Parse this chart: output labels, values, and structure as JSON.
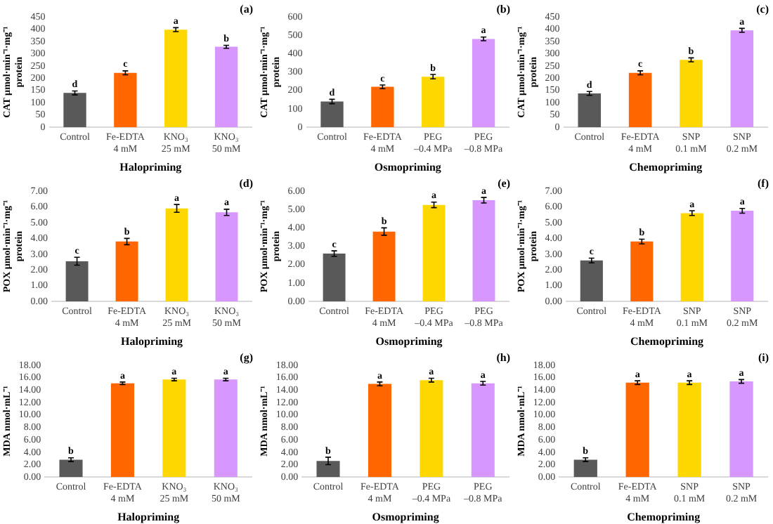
{
  "chart_data": [
    {
      "type": "bar",
      "xlabel": "Halopriming",
      "ylabel": "CAT µmol·min⁻¹·mg⁻¹\nprotein",
      "categories": [
        "Control",
        "Fe-EDTA\n4 mM",
        "KNO₃\n25 mM",
        "KNO₃\n50 mM"
      ],
      "values": [
        140,
        222,
        398,
        328
      ],
      "errors": [
        8,
        8,
        8,
        6
      ],
      "colors": [
        "#595959",
        "#ff6600",
        "#ffd700",
        "#d896ff"
      ],
      "ylim": [
        0,
        450
      ],
      "yticks": [
        0,
        50,
        100,
        150,
        200,
        250,
        300,
        350,
        400,
        450
      ],
      "grid": false,
      "annotations": [
        "(a)",
        {
          "text": "d",
          "x": "Control",
          "y": 148
        },
        {
          "text": "c",
          "x": "Fe-EDTA\n4 mM",
          "y": 230
        },
        {
          "text": "a",
          "x": "KNO₃\n25 mM",
          "y": 406
        },
        {
          "text": "b",
          "x": "KNO₃\n50 mM",
          "y": 334
        }
      ]
    },
    {
      "type": "bar",
      "xlabel": "Osmopriming",
      "ylabel": "CAT µmol·min⁻¹·mg⁻¹\nprotein",
      "categories": [
        "Control",
        "Fe-EDTA\n4 mM",
        "PEG\n–0.4 MPa",
        "PEG\n–0.8 MPa"
      ],
      "values": [
        140,
        220,
        275,
        480
      ],
      "errors": [
        12,
        10,
        12,
        10
      ],
      "colors": [
        "#595959",
        "#ff6600",
        "#ffd700",
        "#d896ff"
      ],
      "ylim": [
        0,
        600
      ],
      "yticks": [
        0,
        100,
        200,
        300,
        400,
        500,
        600
      ],
      "grid": false,
      "annotations": [
        "(b)",
        {
          "text": "d",
          "x": "Control",
          "y": 152
        },
        {
          "text": "c",
          "x": "Fe-EDTA\n4 mM",
          "y": 230
        },
        {
          "text": "b",
          "x": "PEG\n–0.4 MPa",
          "y": 287
        },
        {
          "text": "a",
          "x": "PEG\n–0.8 MPa",
          "y": 490
        }
      ]
    },
    {
      "type": "bar",
      "xlabel": "Chemopriming",
      "ylabel": "CAT µmol·min⁻¹·mg⁻¹\nprotein",
      "categories": [
        "Control",
        "Fe-EDTA\n4 mM",
        "SNP\n0.1 mM",
        "SNP\n0.2 mM"
      ],
      "values": [
        138,
        222,
        275,
        395
      ],
      "errors": [
        8,
        8,
        8,
        8
      ],
      "colors": [
        "#595959",
        "#ff6600",
        "#ffd700",
        "#d896ff"
      ],
      "ylim": [
        0,
        450
      ],
      "yticks": [
        0,
        50,
        100,
        150,
        200,
        250,
        300,
        350,
        400,
        450
      ],
      "grid": false,
      "annotations": [
        "(c)",
        {
          "text": "d",
          "x": "Control",
          "y": 146
        },
        {
          "text": "c",
          "x": "Fe-EDTA\n4 mM",
          "y": 230
        },
        {
          "text": "b",
          "x": "SNP\n0.1 mM",
          "y": 283
        },
        {
          "text": "a",
          "x": "SNP\n0.2 mM",
          "y": 403
        }
      ]
    },
    {
      "type": "bar",
      "xlabel": "Halopriming",
      "ylabel": "POX µmol·min⁻¹·mg⁻¹\nprotein",
      "categories": [
        "Control",
        "Fe-EDTA\n4 mM",
        "KNO₃\n25 mM",
        "KNO₃\n50 mM"
      ],
      "values": [
        2.55,
        3.8,
        5.9,
        5.65
      ],
      "errors": [
        0.25,
        0.2,
        0.25,
        0.2
      ],
      "colors": [
        "#595959",
        "#ff6600",
        "#ffd700",
        "#d896ff"
      ],
      "ylim": [
        0,
        7
      ],
      "yticks": [
        {
          "value": 0,
          "label": "0.00"
        },
        {
          "value": 1,
          "label": "1.00"
        },
        {
          "value": 2,
          "label": "2.00"
        },
        {
          "value": 3,
          "label": "3.00"
        },
        {
          "value": 4,
          "label": "4.00"
        },
        {
          "value": 5,
          "label": "5.00"
        },
        {
          "value": 6,
          "label": "6.00"
        },
        {
          "value": 7,
          "label": "7.00"
        }
      ],
      "grid": false,
      "annotations": [
        "(d)",
        {
          "text": "c",
          "x": "Control",
          "y": 2.8
        },
        {
          "text": "b",
          "x": "Fe-EDTA\n4 mM",
          "y": 4
        },
        {
          "text": "a",
          "x": "KNO₃\n25 mM",
          "y": 6.15
        },
        {
          "text": "a",
          "x": "KNO₃\n50 mM",
          "y": 5.85
        }
      ]
    },
    {
      "type": "bar",
      "xlabel": "Osmopriming",
      "ylabel": "POX µmol·min⁻¹·mg⁻¹\nprotein",
      "categories": [
        "Control",
        "Fe-EDTA\n4 mM",
        "PEG\n–0.4 MPa",
        "PEG\n–0.8 MPa"
      ],
      "values": [
        2.6,
        3.8,
        5.25,
        5.5
      ],
      "errors": [
        0.15,
        0.2,
        0.15,
        0.15
      ],
      "colors": [
        "#595959",
        "#ff6600",
        "#ffd700",
        "#d896ff"
      ],
      "ylim": [
        0,
        6
      ],
      "yticks": [
        {
          "value": 0,
          "label": "0.00"
        },
        {
          "value": 1,
          "label": "1.00"
        },
        {
          "value": 2,
          "label": "2.00"
        },
        {
          "value": 3,
          "label": "3.00"
        },
        {
          "value": 4,
          "label": "4.00"
        },
        {
          "value": 5,
          "label": "5.00"
        },
        {
          "value": 6,
          "label": "6.00"
        }
      ],
      "grid": false,
      "annotations": [
        "(e)",
        {
          "text": "c",
          "x": "Control",
          "y": 2.75
        },
        {
          "text": "b",
          "x": "Fe-EDTA\n4 mM",
          "y": 4
        },
        {
          "text": "a",
          "x": "PEG\n–0.4 MPa",
          "y": 5.4
        },
        {
          "text": "a",
          "x": "PEG\n–0.8 MPa",
          "y": 5.65
        }
      ]
    },
    {
      "type": "bar",
      "xlabel": "Chemopriming",
      "ylabel": "POX µmol·min⁻¹·mg⁻¹\nprotein",
      "categories": [
        "Control",
        "Fe-EDTA\n4 mM",
        "SNP\n0.1 mM",
        "SNP\n0.2 mM"
      ],
      "values": [
        2.6,
        3.8,
        5.6,
        5.75
      ],
      "errors": [
        0.15,
        0.15,
        0.15,
        0.15
      ],
      "colors": [
        "#595959",
        "#ff6600",
        "#ffd700",
        "#d896ff"
      ],
      "ylim": [
        0,
        7
      ],
      "yticks": [
        {
          "value": 0,
          "label": "0.00"
        },
        {
          "value": 1,
          "label": "1.00"
        },
        {
          "value": 2,
          "label": "2.00"
        },
        {
          "value": 3,
          "label": "3.00"
        },
        {
          "value": 4,
          "label": "4.00"
        },
        {
          "value": 5,
          "label": "5.00"
        },
        {
          "value": 6,
          "label": "6.00"
        },
        {
          "value": 7,
          "label": "7.00"
        }
      ],
      "grid": false,
      "annotations": [
        "(f)",
        {
          "text": "c",
          "x": "Control",
          "y": 2.75
        },
        {
          "text": "b",
          "x": "Fe-EDTA\n4 mM",
          "y": 3.95
        },
        {
          "text": "a",
          "x": "SNP\n0.1 mM",
          "y": 5.75
        },
        {
          "text": "a",
          "x": "SNP\n0.2 mM",
          "y": 5.9
        }
      ]
    },
    {
      "type": "bar",
      "xlabel": "Halopriming",
      "ylabel": "MDA nmol·mL⁻¹",
      "categories": [
        "Control",
        "Fe-EDTA\n4 mM",
        "KNO₃\n25 mM",
        "KNO₃\n50 mM"
      ],
      "values": [
        2.8,
        15.1,
        15.7,
        15.7
      ],
      "errors": [
        0.3,
        0.2,
        0.2,
        0.2
      ],
      "colors": [
        "#595959",
        "#ff6600",
        "#ffd700",
        "#d896ff"
      ],
      "ylim": [
        0,
        18
      ],
      "yticks": [
        {
          "value": 0,
          "label": "0.00"
        },
        {
          "value": 2,
          "label": "2.00"
        },
        {
          "value": 4,
          "label": "4.00"
        },
        {
          "value": 6,
          "label": "6.00"
        },
        {
          "value": 8,
          "label": "8.00"
        },
        {
          "value": 10,
          "label": "10.00"
        },
        {
          "value": 12,
          "label": "12.00"
        },
        {
          "value": 14,
          "label": "14.00"
        },
        {
          "value": 16,
          "label": "16.00"
        },
        {
          "value": 18,
          "label": "18.00"
        }
      ],
      "grid": false,
      "annotations": [
        "(g)",
        {
          "text": "b",
          "x": "Control",
          "y": 3.1
        },
        {
          "text": "a",
          "x": "Fe-EDTA\n4 mM",
          "y": 15.3
        },
        {
          "text": "a",
          "x": "KNO₃\n25 mM",
          "y": 15.9
        },
        {
          "text": "a",
          "x": "KNO₃\n50 mM",
          "y": 15.9
        }
      ]
    },
    {
      "type": "bar",
      "xlabel": "Osmopriming",
      "ylabel": "MDA nmol·mL⁻¹",
      "categories": [
        "Control",
        "Fe-EDTA\n4 mM",
        "PEG\n–0.4 MPa",
        "PEG\n–0.8 MPa"
      ],
      "values": [
        2.6,
        15.0,
        15.6,
        15.1
      ],
      "errors": [
        0.6,
        0.3,
        0.3,
        0.3
      ],
      "colors": [
        "#595959",
        "#ff6600",
        "#ffd700",
        "#d896ff"
      ],
      "ylim": [
        0,
        18
      ],
      "yticks": [
        {
          "value": 0,
          "label": "0.00"
        },
        {
          "value": 2,
          "label": "2.00"
        },
        {
          "value": 4,
          "label": "4.00"
        },
        {
          "value": 6,
          "label": "6.00"
        },
        {
          "value": 8,
          "label": "8.00"
        },
        {
          "value": 10,
          "label": "10.00"
        },
        {
          "value": 12,
          "label": "12.00"
        },
        {
          "value": 14,
          "label": "14.00"
        },
        {
          "value": 16,
          "label": "16.00"
        },
        {
          "value": 18,
          "label": "18.00"
        }
      ],
      "grid": false,
      "annotations": [
        "(h)",
        {
          "text": "b",
          "x": "Control",
          "y": 3.2
        },
        {
          "text": "a",
          "x": "Fe-EDTA\n4 mM",
          "y": 15.3
        },
        {
          "text": "a",
          "x": "PEG\n–0.4 MPa",
          "y": 15.9
        },
        {
          "text": "a",
          "x": "PEG\n–0.8 MPa",
          "y": 15.4
        }
      ]
    },
    {
      "type": "bar",
      "xlabel": "Chemopriming",
      "ylabel": "MDA nmol·mL⁻¹",
      "categories": [
        "Control",
        "Fe-EDTA\n4 mM",
        "SNP\n0.1 mM",
        "SNP\n0.2 mM"
      ],
      "values": [
        2.8,
        15.2,
        15.2,
        15.4
      ],
      "errors": [
        0.3,
        0.3,
        0.3,
        0.3
      ],
      "colors": [
        "#595959",
        "#ff6600",
        "#ffd700",
        "#d896ff"
      ],
      "ylim": [
        0,
        18
      ],
      "yticks": [
        {
          "value": 0,
          "label": "0.00"
        },
        {
          "value": 2,
          "label": "2.00"
        },
        {
          "value": 4,
          "label": "4.00"
        },
        {
          "value": 6,
          "label": "6.00"
        },
        {
          "value": 8,
          "label": "8.00"
        },
        {
          "value": 10,
          "label": "10.00"
        },
        {
          "value": 12,
          "label": "12.00"
        },
        {
          "value": 14,
          "label": "14.00"
        },
        {
          "value": 16,
          "label": "16.00"
        },
        {
          "value": 18,
          "label": "18.00"
        }
      ],
      "grid": false,
      "annotations": [
        "(i)",
        {
          "text": "b",
          "x": "Control",
          "y": 3.1
        },
        {
          "text": "a",
          "x": "Fe-EDTA\n4 mM",
          "y": 15.5
        },
        {
          "text": "a",
          "x": "SNP\n0.1 mM",
          "y": 15.5
        },
        {
          "text": "a",
          "x": "SNP\n0.2 mM",
          "y": 15.7
        }
      ]
    }
  ]
}
